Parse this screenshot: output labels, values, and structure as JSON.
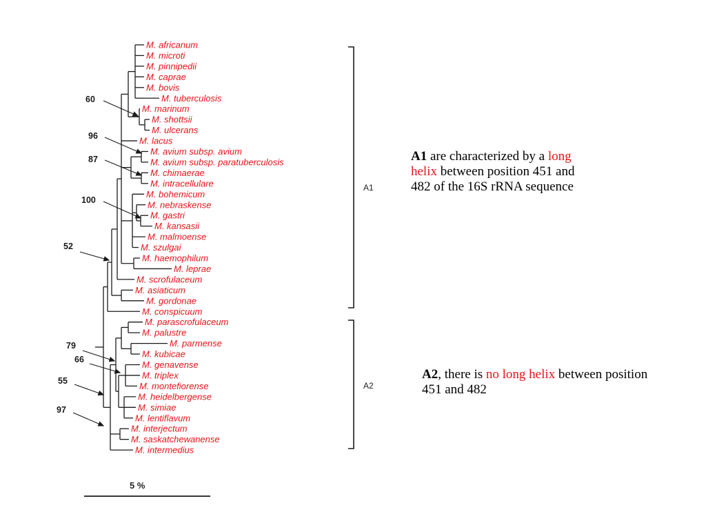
{
  "colors": {
    "taxon": "#e8141b",
    "highlight": "#e8141b",
    "lines": "#1a1a1a"
  },
  "taxa": [
    "M. africanum",
    "M. microti",
    "M. pinnipedii",
    "M. caprae",
    "M. bovis",
    "M. tuberculosis",
    "M. marinum",
    "M. shottsii",
    "M. ulcerans",
    "M. lacus",
    "M. avium subsp. avium",
    "M. avium subsp. paratuberculosis",
    "M. chimaerae",
    "M. intracellulare",
    "M. bohemicum",
    "M. nebraskense",
    "M. gastri",
    "M. kansasii",
    "M. malmoense",
    "M. szulgai",
    "M. haemophilum",
    "M. leprae",
    "M. scrofulaceum",
    "M. asiaticum",
    "M. gordonae",
    "M. conspicuum",
    "M. parascrofulaceum",
    "M. palustre",
    "M. parmense",
    "M. kubicae",
    "M. genavense",
    "M. triplex",
    "M. montefiorense",
    "M. heidelbergense",
    "M. simiae",
    "M. lentiflavum",
    "M. interjectum",
    "M. saskatchewanense",
    "M. intermedius"
  ],
  "bootstrap": [
    "60",
    "96",
    "87",
    "100",
    "52",
    "79",
    "66",
    "55",
    "97"
  ],
  "clades": {
    "a1": "A1",
    "a2": "A2"
  },
  "scale_bar": {
    "label": "5 %"
  },
  "notes": {
    "a1": {
      "label": "A1",
      "text_before": " are characterized by a ",
      "highlight": "long helix",
      "text_after": " between position  451 and 482 of the 16S rRNA sequence"
    },
    "a2": {
      "label": "A2",
      "text_before": ", there is ",
      "highlight": "no long helix",
      "text_after": " between position 451 and 482"
    }
  }
}
